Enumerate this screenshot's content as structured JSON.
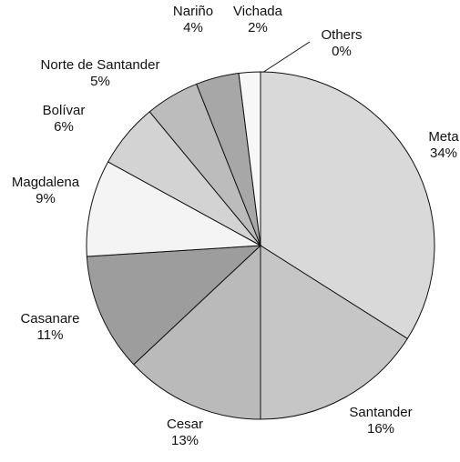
{
  "chart_data": {
    "type": "pie",
    "categories": [
      "Meta",
      "Santander",
      "Cesar",
      "Casanare",
      "Magdalena",
      "Bolívar",
      "Norte de Santander",
      "Nariño",
      "Vichada",
      "Others"
    ],
    "values": [
      34,
      16,
      13,
      11,
      9,
      6,
      5,
      4,
      2,
      0
    ],
    "value_labels": [
      "34%",
      "16%",
      "13%",
      "11%",
      "9%",
      "6%",
      "5%",
      "4%",
      "2%",
      "0%"
    ],
    "colors": [
      "#d9d9d9",
      "#c6c6c6",
      "#bababa",
      "#9d9d9d",
      "#f4f4f4",
      "#d3d3d3",
      "#bcbcbc",
      "#a7a7a7",
      "#f7f7f7",
      "#ffffff"
    ]
  }
}
